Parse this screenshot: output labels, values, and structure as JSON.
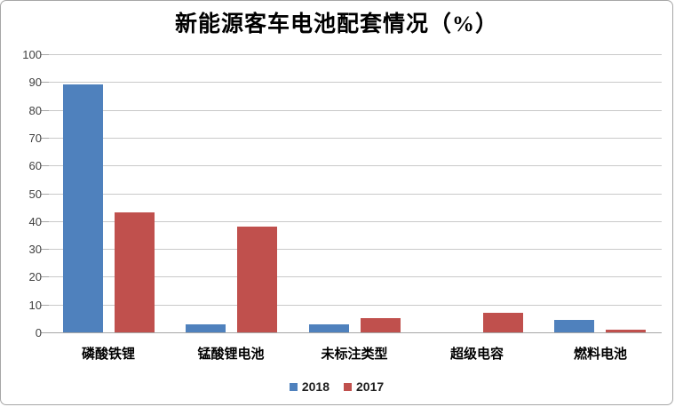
{
  "window": {
    "background": "#ffffff",
    "border_color": "#a6a6a6"
  },
  "chart_data": {
    "type": "bar",
    "title": "新能源客车电池配套情况（%）",
    "categories": [
      "磷酸铁锂",
      "锰酸锂电池",
      "未标注类型",
      "超级电容",
      "燃料电池"
    ],
    "series": [
      {
        "name": "2018",
        "color": "#4F81BD",
        "values": [
          89,
          3,
          3,
          0,
          4.5
        ]
      },
      {
        "name": "2017",
        "color": "#C0504D",
        "values": [
          43,
          38,
          5,
          7,
          1
        ]
      }
    ],
    "xlabel": "",
    "ylabel": "",
    "ylim": [
      0,
      100
    ],
    "ytick_step": 10,
    "grid": true,
    "legend_position": "bottom",
    "colors": {
      "gridline": "#c9c9c9",
      "axis_line": "#a6a6a6",
      "axis_label": "#3f3f3f",
      "title_text": "#000000"
    }
  }
}
